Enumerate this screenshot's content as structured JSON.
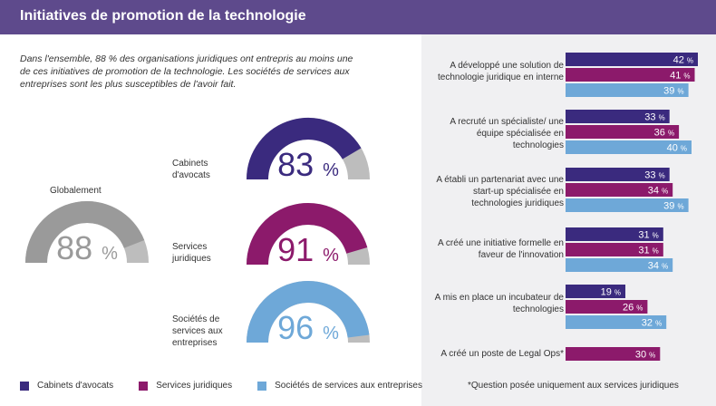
{
  "header": {
    "title": "Initiatives de promotion de la technologie"
  },
  "intro": "Dans l'ensemble, 88 % des organisations juridiques ont entrepris au moins une de ces initiatives de promotion de la technologie. Les sociétés de services aux entreprises sont les plus susceptibles de l'avoir fait.",
  "colors": {
    "cabinets": "#3a2a7e",
    "services_juridiques": "#8c1a6b",
    "societes": "#6ea8d8",
    "global": "#9a9a9a",
    "track": "#bdbdbd"
  },
  "gauges": [
    {
      "label": "Globalement",
      "value": 88,
      "value_text": "88",
      "pct": "%"
    },
    {
      "label": "Cabinets d'avocats",
      "value": 83,
      "value_text": "83",
      "pct": "%"
    },
    {
      "label": "Services juridiques",
      "value": 91,
      "value_text": "91",
      "pct": "%"
    },
    {
      "label": "Sociétés de services aux entreprises",
      "value": 96,
      "value_text": "96",
      "pct": "%"
    }
  ],
  "chart_data": {
    "type": "bar",
    "orientation": "horizontal",
    "categories": [
      "A développé une solution de technologie juridique en interne",
      "A recruté un spécialiste/ une équipe spécialisée en technologies",
      "A établi un partenariat avec une start-up spécialisée en technologies juridiques",
      "A créé une initiative formelle en faveur de l'innovation",
      "A mis en place un incubateur de technologies",
      "A créé un poste de Legal Ops*"
    ],
    "series": [
      {
        "name": "Cabinets d'avocats",
        "values": [
          42,
          33,
          33,
          31,
          19,
          null
        ]
      },
      {
        "name": "Services juridiques",
        "values": [
          41,
          36,
          34,
          31,
          26,
          30
        ]
      },
      {
        "name": "Sociétés de services aux entreprises",
        "values": [
          39,
          40,
          39,
          34,
          32,
          null
        ]
      }
    ],
    "unit": "%",
    "xlim": [
      0,
      42
    ]
  },
  "legend": [
    {
      "label": "Cabinets d'avocats"
    },
    {
      "label": "Services juridiques"
    },
    {
      "label": "Sociétés de services aux entreprises"
    }
  ],
  "footnote": "*Question posée uniquement aux services juridiques"
}
